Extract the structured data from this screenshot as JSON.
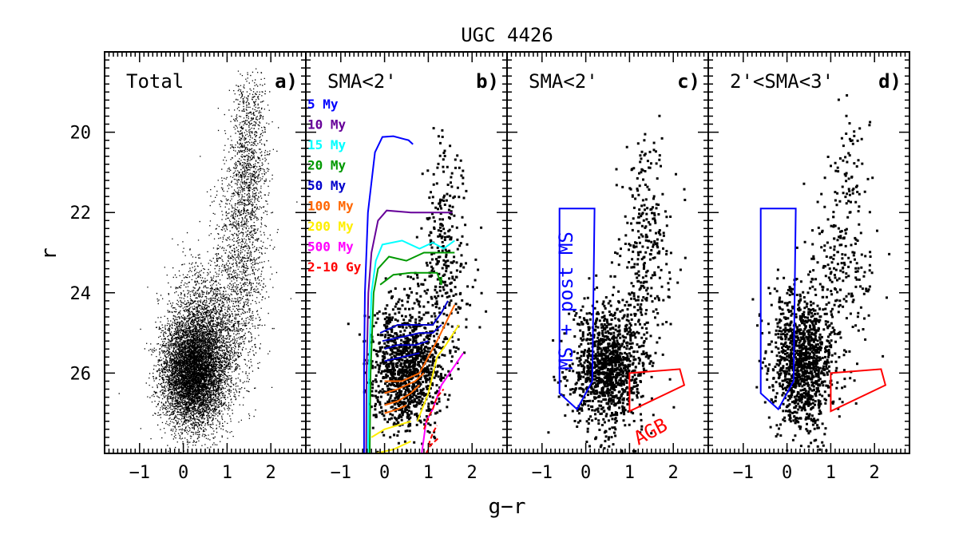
{
  "chart_data": {
    "type": "scatter",
    "title": "UGC 4426",
    "xlabel": "g−r",
    "ylabel": "r",
    "xlim": [
      -1.8,
      2.8
    ],
    "ylim": [
      18.0,
      28.0
    ],
    "y_inverted": true,
    "x_ticks": [
      -1,
      0,
      1,
      2
    ],
    "y_ticks": [
      20,
      22,
      24,
      26
    ],
    "panels": [
      {
        "id": "a",
        "label": "Total",
        "tag": "a)",
        "marker": "fine",
        "n_points_est": 40000,
        "density": [
          {
            "x": 0.2,
            "y": 26.0,
            "sx": 0.35,
            "sy": 0.65,
            "w": 0.55
          },
          {
            "x": 0.5,
            "y": 25.2,
            "sx": 0.4,
            "sy": 0.9,
            "w": 0.25
          },
          {
            "x": 1.3,
            "y": 23.0,
            "sx": 0.3,
            "sy": 1.4,
            "w": 0.12
          },
          {
            "x": 1.5,
            "y": 20.5,
            "sx": 0.2,
            "sy": 1.1,
            "w": 0.08
          }
        ]
      },
      {
        "id": "b",
        "label": "SMA<2'",
        "tag": "b)",
        "marker": "square",
        "n_points_est": 1500,
        "density": [
          {
            "x": 0.5,
            "y": 25.9,
            "sx": 0.4,
            "sy": 0.75,
            "w": 0.8
          },
          {
            "x": 1.3,
            "y": 23.5,
            "sx": 0.35,
            "sy": 1.0,
            "w": 0.15
          },
          {
            "x": 1.4,
            "y": 21.5,
            "sx": 0.2,
            "sy": 0.8,
            "w": 0.05
          }
        ]
      },
      {
        "id": "c",
        "label": "SMA<2'",
        "tag": "c)",
        "marker": "square",
        "n_points_est": 1500,
        "density": [
          {
            "x": 0.5,
            "y": 25.9,
            "sx": 0.4,
            "sy": 0.75,
            "w": 0.8
          },
          {
            "x": 1.3,
            "y": 23.5,
            "sx": 0.35,
            "sy": 1.0,
            "w": 0.15
          },
          {
            "x": 1.4,
            "y": 21.5,
            "sx": 0.2,
            "sy": 0.8,
            "w": 0.05
          }
        ],
        "regions": [
          {
            "name": "MS + post MS",
            "color": "#0000ff",
            "polygon": [
              [
                -0.6,
                21.9
              ],
              [
                0.2,
                21.9
              ],
              [
                0.15,
                26.2
              ],
              [
                -0.2,
                26.9
              ],
              [
                -0.6,
                26.5
              ]
            ]
          },
          {
            "name": "AGB",
            "color": "#ff0000",
            "polygon": [
              [
                1.0,
                26.0
              ],
              [
                2.15,
                25.9
              ],
              [
                2.25,
                26.3
              ],
              [
                1.0,
                26.95
              ]
            ]
          }
        ]
      },
      {
        "id": "d",
        "label": "2'<SMA<3'",
        "tag": "d)",
        "marker": "square",
        "n_points_est": 1500,
        "density": [
          {
            "x": 0.35,
            "y": 25.7,
            "sx": 0.35,
            "sy": 0.85,
            "w": 0.8
          },
          {
            "x": 1.2,
            "y": 23.5,
            "sx": 0.4,
            "sy": 1.1,
            "w": 0.15
          },
          {
            "x": 1.4,
            "y": 21.0,
            "sx": 0.25,
            "sy": 0.9,
            "w": 0.05
          }
        ],
        "regions": [
          {
            "name": "MS + post MS",
            "color": "#0000ff",
            "polygon": [
              [
                -0.6,
                21.9
              ],
              [
                0.2,
                21.9
              ],
              [
                0.15,
                26.2
              ],
              [
                -0.2,
                26.9
              ],
              [
                -0.6,
                26.5
              ]
            ]
          },
          {
            "name": "AGB",
            "color": "#ff0000",
            "polygon": [
              [
                1.0,
                26.0
              ],
              [
                2.15,
                25.9
              ],
              [
                2.25,
                26.3
              ],
              [
                1.0,
                26.95
              ]
            ]
          }
        ]
      }
    ],
    "isochrones": [
      {
        "label": "5 My",
        "color": "#0000ff",
        "curves": [
          [
            [
              -0.47,
              28.0
            ],
            [
              -0.47,
              26.0
            ],
            [
              -0.45,
              24.0
            ],
            [
              -0.38,
              22.0
            ],
            [
              -0.22,
              20.5
            ],
            [
              -0.05,
              20.12
            ],
            [
              0.2,
              20.1
            ],
            [
              0.55,
              20.2
            ],
            [
              0.65,
              20.3
            ]
          ]
        ]
      },
      {
        "label": "10 My",
        "color": "#660099",
        "curves": [
          [
            [
              -0.42,
              28.0
            ],
            [
              -0.41,
              26.0
            ],
            [
              -0.37,
              24.0
            ],
            [
              -0.3,
              23.0
            ],
            [
              -0.15,
              22.2
            ],
            [
              0.05,
              21.95
            ],
            [
              0.6,
              22.0
            ],
            [
              1.1,
              22.0
            ],
            [
              1.55,
              22.0
            ]
          ]
        ]
      },
      {
        "label": "15 My",
        "color": "#00ffff",
        "curves": [
          [
            [
              -0.38,
              28.0
            ],
            [
              -0.36,
              26.0
            ],
            [
              -0.3,
              24.0
            ],
            [
              -0.2,
              23.2
            ],
            [
              -0.05,
              22.8
            ],
            [
              0.4,
              22.7
            ],
            [
              0.8,
              22.9
            ],
            [
              1.1,
              22.75
            ],
            [
              1.35,
              22.9
            ],
            [
              1.6,
              22.7
            ]
          ]
        ]
      },
      {
        "label": "20 My",
        "color": "#009900",
        "curves": [
          [
            [
              -0.34,
              28.0
            ],
            [
              -0.32,
              26.0
            ],
            [
              -0.25,
              24.0
            ],
            [
              -0.15,
              23.4
            ],
            [
              0.1,
              23.1
            ],
            [
              0.5,
              23.2
            ],
            [
              0.9,
              23.0
            ],
            [
              1.3,
              23.0
            ],
            [
              1.6,
              23.0
            ]
          ],
          [
            [
              -0.1,
              23.8
            ],
            [
              0.2,
              23.55
            ],
            [
              0.6,
              23.5
            ],
            [
              0.9,
              23.5
            ],
            [
              1.2,
              23.5
            ],
            [
              1.3,
              23.8
            ],
            [
              1.3,
              23.6
            ]
          ]
        ]
      },
      {
        "label": "50 My",
        "color": "#0000cc",
        "curves": [
          [
            [
              -0.1,
              25.0
            ],
            [
              0.3,
              24.8
            ],
            [
              0.8,
              24.8
            ],
            [
              1.1,
              24.8
            ],
            [
              1.3,
              24.5
            ],
            [
              1.45,
              24.2
            ]
          ],
          [
            [
              -0.05,
              25.2
            ],
            [
              0.4,
              25.1
            ],
            [
              0.8,
              25.0
            ],
            [
              1.1,
              25.0
            ],
            [
              1.3,
              24.8
            ]
          ],
          [
            [
              0.0,
              25.4
            ],
            [
              0.3,
              25.3
            ],
            [
              0.7,
              25.3
            ],
            [
              1.0,
              25.2
            ]
          ],
          [
            [
              0.0,
              25.7
            ],
            [
              0.4,
              25.6
            ],
            [
              0.8,
              25.5
            ]
          ]
        ]
      },
      {
        "label": "100 My",
        "color": "#ff6600",
        "curves": [
          [
            [
              0.0,
              26.2
            ],
            [
              0.4,
              26.2
            ],
            [
              0.8,
              26.0
            ],
            [
              1.2,
              25.2
            ],
            [
              1.6,
              24.3
            ]
          ],
          [
            [
              0.0,
              26.5
            ],
            [
              0.3,
              26.4
            ],
            [
              0.7,
              26.2
            ],
            [
              0.9,
              26.0
            ]
          ],
          [
            [
              0.0,
              26.8
            ],
            [
              0.3,
              26.7
            ],
            [
              0.6,
              26.5
            ],
            [
              0.8,
              26.3
            ]
          ],
          [
            [
              0.0,
              27.0
            ],
            [
              0.3,
              26.9
            ],
            [
              0.5,
              26.8
            ]
          ]
        ]
      },
      {
        "label": "200 My",
        "color": "#ffee00",
        "curves": [
          [
            [
              0.75,
              27.2
            ],
            [
              1.0,
              26.5
            ],
            [
              1.2,
              25.6
            ],
            [
              1.4,
              25.3
            ],
            [
              1.7,
              24.8
            ]
          ],
          [
            [
              -0.3,
              27.6
            ],
            [
              0.0,
              27.4
            ],
            [
              0.3,
              27.3
            ],
            [
              0.6,
              27.2
            ]
          ],
          [
            [
              -0.2,
              28.0
            ],
            [
              0.2,
              27.9
            ],
            [
              0.6,
              27.7
            ]
          ]
        ]
      },
      {
        "label": "500 My",
        "color": "#ff00ff",
        "curves": [
          [
            [
              0.85,
              28.0
            ],
            [
              0.95,
              27.2
            ],
            [
              1.1,
              26.9
            ],
            [
              1.3,
              26.3
            ],
            [
              1.55,
              25.9
            ],
            [
              1.8,
              25.5
            ]
          ]
        ]
      },
      {
        "label": "2-10 Gy",
        "color": "#ff0000",
        "dashed": true,
        "curves": [
          [
            [
              0.9,
              27.4
            ],
            [
              1.0,
              27.1
            ],
            [
              1.1,
              26.9
            ],
            [
              1.2,
              26.6
            ],
            [
              1.35,
              26.4
            ]
          ],
          [
            [
              1.0,
              27.8
            ],
            [
              1.1,
              27.5
            ],
            [
              1.2,
              27.3
            ]
          ],
          [
            [
              0.95,
              28.0
            ],
            [
              1.05,
              27.8
            ],
            [
              1.15,
              27.7
            ],
            [
              1.25,
              27.6
            ]
          ]
        ]
      }
    ]
  }
}
